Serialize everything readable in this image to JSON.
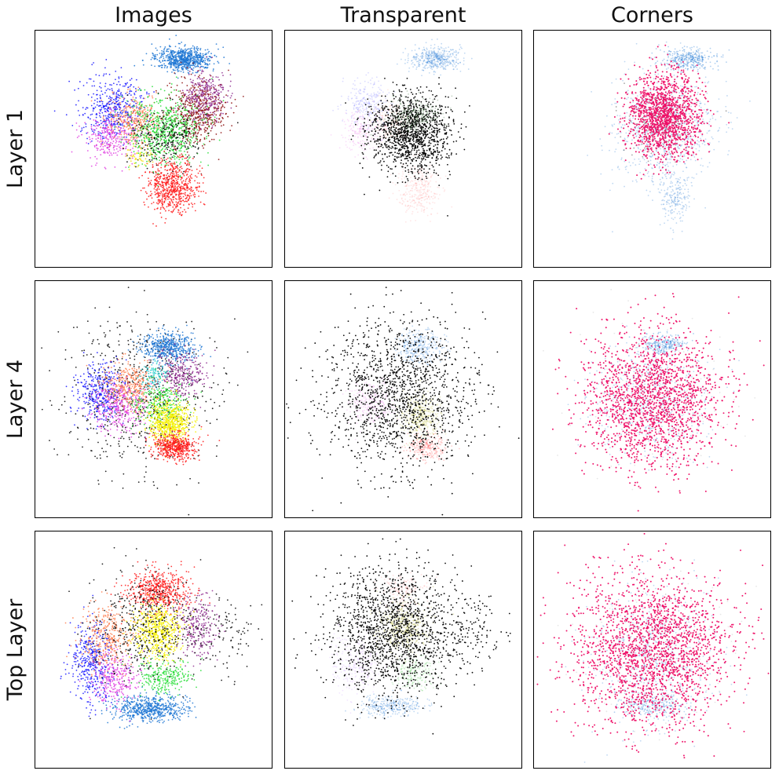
{
  "figure": {
    "column_titles": [
      "Images",
      "Transparent",
      "Corners"
    ],
    "row_titles": [
      "Layer 1",
      "Layer 4",
      "Top Layer"
    ]
  },
  "chart_data": {
    "type": "scatter",
    "grid": false,
    "axes_ticks": "none",
    "panels": [
      {
        "row": "Layer 1",
        "column": "Images",
        "style": "colored",
        "clusters": [
          {
            "color": "#1f77d4",
            "cx": 0.63,
            "cy": 0.12,
            "rx": 0.11,
            "ry": 0.045,
            "n": 700
          },
          {
            "color": "#1a1aff",
            "cx": 0.33,
            "cy": 0.33,
            "rx": 0.12,
            "ry": 0.12,
            "n": 450
          },
          {
            "color": "#e040e0",
            "cx": 0.32,
            "cy": 0.45,
            "rx": 0.1,
            "ry": 0.09,
            "n": 300
          },
          {
            "color": "#ff7f50",
            "cx": 0.42,
            "cy": 0.38,
            "rx": 0.1,
            "ry": 0.1,
            "n": 350
          },
          {
            "color": "#8b0a0a",
            "cx": 0.68,
            "cy": 0.35,
            "rx": 0.11,
            "ry": 0.13,
            "n": 500
          },
          {
            "color": "#8e2a8e",
            "cx": 0.72,
            "cy": 0.28,
            "rx": 0.08,
            "ry": 0.1,
            "n": 300
          },
          {
            "color": "#22dd33",
            "cx": 0.55,
            "cy": 0.42,
            "rx": 0.14,
            "ry": 0.13,
            "n": 650
          },
          {
            "color": "#000000",
            "cx": 0.55,
            "cy": 0.45,
            "rx": 0.13,
            "ry": 0.12,
            "n": 250
          },
          {
            "color": "#ff1a1a",
            "cx": 0.58,
            "cy": 0.66,
            "rx": 0.1,
            "ry": 0.1,
            "n": 650
          },
          {
            "color": "#f5e11a",
            "cx": 0.43,
            "cy": 0.53,
            "rx": 0.06,
            "ry": 0.04,
            "n": 60
          }
        ]
      },
      {
        "row": "Layer 1",
        "column": "Transparent",
        "style": "faded",
        "clusters": [
          {
            "color": "#1f77d4",
            "cx": 0.64,
            "cy": 0.12,
            "rx": 0.1,
            "ry": 0.045,
            "n": 450
          },
          {
            "color": "#8080ff",
            "cx": 0.35,
            "cy": 0.3,
            "rx": 0.09,
            "ry": 0.09,
            "n": 250
          },
          {
            "color": "#ee88ee",
            "cx": 0.33,
            "cy": 0.43,
            "rx": 0.08,
            "ry": 0.08,
            "n": 200
          },
          {
            "color": "#ffb0a0",
            "cx": 0.45,
            "cy": 0.38,
            "rx": 0.08,
            "ry": 0.08,
            "n": 200
          },
          {
            "color": "#ffa0a0",
            "cx": 0.56,
            "cy": 0.68,
            "rx": 0.08,
            "ry": 0.1,
            "n": 300
          },
          {
            "color": "#000000",
            "cx": 0.53,
            "cy": 0.43,
            "rx": 0.15,
            "ry": 0.15,
            "n": 1300
          },
          {
            "color": "#1f5a1f",
            "cx": 0.55,
            "cy": 0.36,
            "rx": 0.1,
            "ry": 0.07,
            "n": 250
          }
        ]
      },
      {
        "row": "Layer 1",
        "column": "Corners",
        "style": "highlight",
        "clusters": [
          {
            "color": "#4a90d9",
            "cx": 0.55,
            "cy": 0.42,
            "rx": 0.2,
            "ry": 0.22,
            "n": 750
          },
          {
            "color": "#4a90d9",
            "cx": 0.6,
            "cy": 0.7,
            "rx": 0.06,
            "ry": 0.1,
            "n": 200
          },
          {
            "color": "#1f77d4",
            "cx": 0.65,
            "cy": 0.12,
            "rx": 0.1,
            "ry": 0.04,
            "n": 350
          },
          {
            "color": "#000000",
            "cx": 0.53,
            "cy": 0.4,
            "rx": 0.12,
            "ry": 0.12,
            "n": 150
          },
          {
            "color": "#ee0e66",
            "cx": 0.55,
            "cy": 0.36,
            "rx": 0.14,
            "ry": 0.16,
            "n": 1400
          }
        ]
      },
      {
        "row": "Layer 4",
        "column": "Images",
        "style": "colored",
        "clusters": [
          {
            "color": "#000000",
            "cx": 0.45,
            "cy": 0.48,
            "rx": 0.3,
            "ry": 0.28,
            "n": 650
          },
          {
            "color": "#1f77d4",
            "cx": 0.56,
            "cy": 0.28,
            "rx": 0.1,
            "ry": 0.06,
            "n": 500
          },
          {
            "color": "#1a1aff",
            "cx": 0.27,
            "cy": 0.47,
            "rx": 0.09,
            "ry": 0.11,
            "n": 350
          },
          {
            "color": "#e040e0",
            "cx": 0.36,
            "cy": 0.53,
            "rx": 0.1,
            "ry": 0.1,
            "n": 350
          },
          {
            "color": "#ff7f50",
            "cx": 0.4,
            "cy": 0.44,
            "rx": 0.1,
            "ry": 0.1,
            "n": 350
          },
          {
            "color": "#8e2a8e",
            "cx": 0.62,
            "cy": 0.4,
            "rx": 0.09,
            "ry": 0.09,
            "n": 300
          },
          {
            "color": "#22cccc",
            "cx": 0.5,
            "cy": 0.4,
            "rx": 0.05,
            "ry": 0.05,
            "n": 100
          },
          {
            "color": "#22dd33",
            "cx": 0.52,
            "cy": 0.52,
            "rx": 0.1,
            "ry": 0.09,
            "n": 250
          },
          {
            "color": "#f5f000",
            "cx": 0.57,
            "cy": 0.6,
            "rx": 0.08,
            "ry": 0.08,
            "n": 650
          },
          {
            "color": "#ff1a1a",
            "cx": 0.59,
            "cy": 0.7,
            "rx": 0.08,
            "ry": 0.05,
            "n": 500
          }
        ]
      },
      {
        "row": "Layer 4",
        "column": "Transparent",
        "style": "faded",
        "clusters": [
          {
            "color": "#1f77d4",
            "cx": 0.57,
            "cy": 0.28,
            "rx": 0.09,
            "ry": 0.06,
            "n": 300
          },
          {
            "color": "#ee88ee",
            "cx": 0.36,
            "cy": 0.52,
            "rx": 0.09,
            "ry": 0.09,
            "n": 250
          },
          {
            "color": "#c0c040",
            "cx": 0.57,
            "cy": 0.57,
            "rx": 0.08,
            "ry": 0.08,
            "n": 400
          },
          {
            "color": "#ff4d4d",
            "cx": 0.6,
            "cy": 0.7,
            "rx": 0.07,
            "ry": 0.05,
            "n": 250
          },
          {
            "color": "#000000",
            "cx": 0.48,
            "cy": 0.48,
            "rx": 0.28,
            "ry": 0.28,
            "n": 1500
          }
        ]
      },
      {
        "row": "Layer 4",
        "column": "Corners",
        "style": "highlight",
        "clusters": [
          {
            "color": "#4a90d9",
            "cx": 0.5,
            "cy": 0.5,
            "rx": 0.22,
            "ry": 0.22,
            "n": 600
          },
          {
            "color": "#1f77d4",
            "cx": 0.55,
            "cy": 0.27,
            "rx": 0.08,
            "ry": 0.04,
            "n": 250
          },
          {
            "color": "#bbbbbb",
            "cx": 0.5,
            "cy": 0.5,
            "rx": 0.3,
            "ry": 0.28,
            "n": 150
          },
          {
            "color": "#ee0e66",
            "cx": 0.5,
            "cy": 0.5,
            "rx": 0.26,
            "ry": 0.26,
            "n": 1800
          }
        ]
      },
      {
        "row": "Top Layer",
        "column": "Images",
        "style": "colored",
        "clusters": [
          {
            "color": "#1f77d4",
            "cx": 0.48,
            "cy": 0.75,
            "rx": 0.15,
            "ry": 0.05,
            "n": 600
          },
          {
            "color": "#1a1aff",
            "cx": 0.24,
            "cy": 0.55,
            "rx": 0.08,
            "ry": 0.15,
            "n": 400
          },
          {
            "color": "#e040e0",
            "cx": 0.34,
            "cy": 0.62,
            "rx": 0.09,
            "ry": 0.1,
            "n": 300
          },
          {
            "color": "#ff7f50",
            "cx": 0.3,
            "cy": 0.45,
            "rx": 0.1,
            "ry": 0.12,
            "n": 350
          },
          {
            "color": "#ff1a1a",
            "cx": 0.52,
            "cy": 0.25,
            "rx": 0.12,
            "ry": 0.08,
            "n": 550
          },
          {
            "color": "#8e2a8e",
            "cx": 0.68,
            "cy": 0.4,
            "rx": 0.08,
            "ry": 0.12,
            "n": 250
          },
          {
            "color": "#f5f000",
            "cx": 0.52,
            "cy": 0.42,
            "rx": 0.09,
            "ry": 0.11,
            "n": 600
          },
          {
            "color": "#22dd33",
            "cx": 0.55,
            "cy": 0.62,
            "rx": 0.1,
            "ry": 0.07,
            "n": 250
          },
          {
            "color": "#000000",
            "cx": 0.45,
            "cy": 0.4,
            "rx": 0.2,
            "ry": 0.2,
            "n": 450
          },
          {
            "color": "#000000",
            "cx": 0.8,
            "cy": 0.45,
            "rx": 0.12,
            "ry": 0.15,
            "n": 100
          }
        ]
      },
      {
        "row": "Top Layer",
        "column": "Transparent",
        "style": "faded",
        "clusters": [
          {
            "color": "#1f77d4",
            "cx": 0.45,
            "cy": 0.74,
            "rx": 0.12,
            "ry": 0.04,
            "n": 300
          },
          {
            "color": "#d0a0ff",
            "cx": 0.3,
            "cy": 0.55,
            "rx": 0.1,
            "ry": 0.12,
            "n": 250
          },
          {
            "color": "#ff9090",
            "cx": 0.5,
            "cy": 0.25,
            "rx": 0.08,
            "ry": 0.06,
            "n": 150
          },
          {
            "color": "#a8a820",
            "cx": 0.5,
            "cy": 0.4,
            "rx": 0.09,
            "ry": 0.1,
            "n": 450
          },
          {
            "color": "#60cc60",
            "cx": 0.55,
            "cy": 0.6,
            "rx": 0.08,
            "ry": 0.06,
            "n": 200
          },
          {
            "color": "#000000",
            "cx": 0.46,
            "cy": 0.42,
            "rx": 0.25,
            "ry": 0.24,
            "n": 1600
          },
          {
            "color": "#000000",
            "cx": 0.8,
            "cy": 0.45,
            "rx": 0.1,
            "ry": 0.16,
            "n": 100
          }
        ]
      },
      {
        "row": "Top Layer",
        "column": "Corners",
        "style": "highlight",
        "clusters": [
          {
            "color": "#4a90d9",
            "cx": 0.5,
            "cy": 0.52,
            "rx": 0.22,
            "ry": 0.26,
            "n": 650
          },
          {
            "color": "#1f77d4",
            "cx": 0.5,
            "cy": 0.74,
            "rx": 0.12,
            "ry": 0.04,
            "n": 200
          },
          {
            "color": "#bbbbbb",
            "cx": 0.55,
            "cy": 0.5,
            "rx": 0.3,
            "ry": 0.28,
            "n": 150
          },
          {
            "color": "#ee0e66",
            "cx": 0.5,
            "cy": 0.5,
            "rx": 0.3,
            "ry": 0.3,
            "n": 2100
          }
        ]
      }
    ]
  }
}
